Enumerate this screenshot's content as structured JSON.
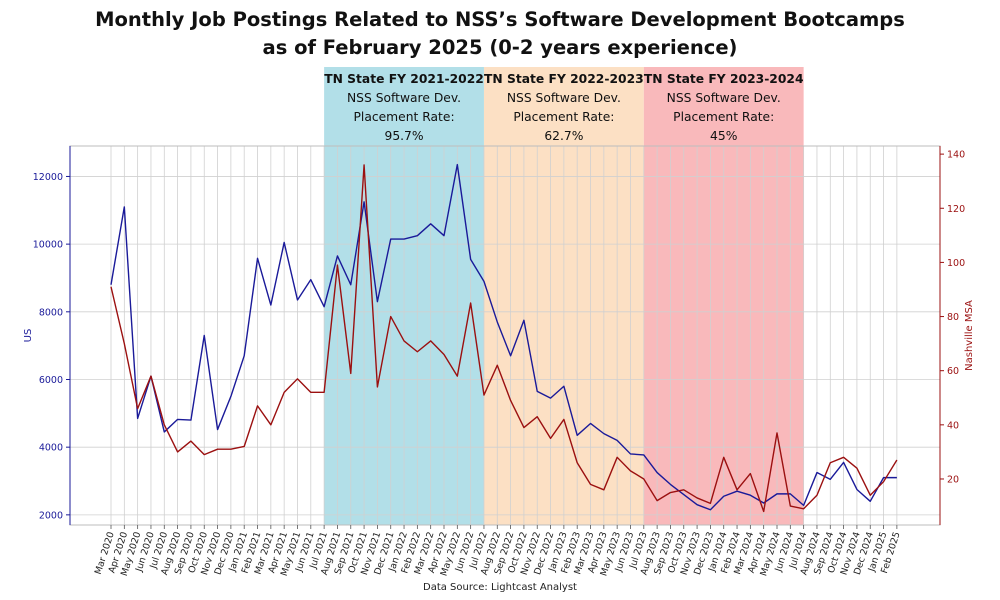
{
  "chart_data": {
    "type": "line",
    "title_lines": [
      "Monthly Job Postings Related to NSS’s Software Development Bootcamps",
      "as of February 2025 (0-2 years experience)"
    ],
    "y_left_label": "US",
    "y_right_label": "Nashville MSA",
    "y_left_ticks": [
      2000,
      4000,
      6000,
      8000,
      10000,
      12000
    ],
    "y_right_ticks": [
      20,
      40,
      60,
      80,
      100,
      120,
      140
    ],
    "y_left_range": [
      1700,
      12900
    ],
    "y_right_range": [
      3,
      143
    ],
    "grid": true,
    "legend": "none",
    "colors": {
      "us": "#1a1a99",
      "nashville": "#9b1010"
    },
    "x": [
      "Mar 2020",
      "Apr 2020",
      "May 2020",
      "Jun 2020",
      "Jul 2020",
      "Aug 2020",
      "Sep 2020",
      "Oct 2020",
      "Nov 2020",
      "Dec 2020",
      "Jan 2021",
      "Feb 2021",
      "Mar 2021",
      "Apr 2021",
      "May 2021",
      "Jun 2021",
      "Jul 2021",
      "Aug 2021",
      "Sep 2021",
      "Oct 2021",
      "Nov 2021",
      "Dec 2021",
      "Jan 2022",
      "Feb 2022",
      "Mar 2022",
      "Apr 2022",
      "May 2022",
      "Jun 2022",
      "Jul 2022",
      "Aug 2022",
      "Sep 2022",
      "Oct 2022",
      "Nov 2022",
      "Dec 2022",
      "Jan 2023",
      "Feb 2023",
      "Mar 2023",
      "Apr 2023",
      "May 2023",
      "Jun 2023",
      "Jul 2023",
      "Aug 2023",
      "Sep 2023",
      "Oct 2023",
      "Nov 2023",
      "Dec 2023",
      "Jan 2024",
      "Feb 2024",
      "Mar 2024",
      "Apr 2024",
      "May 2024",
      "Jun 2024",
      "Jul 2024",
      "Aug 2024",
      "Sep 2024",
      "Oct 2024",
      "Nov 2024",
      "Dec 2024",
      "Jan 2025",
      "Feb 2025"
    ],
    "series": [
      {
        "key": "us",
        "axis": "left",
        "values": [
          8800,
          11100,
          4850,
          6100,
          4450,
          4820,
          4800,
          7300,
          4520,
          5500,
          6700,
          9580,
          8200,
          10050,
          8350,
          8950,
          8150,
          9650,
          8800,
          11250,
          8300,
          10150,
          10150,
          10250,
          10600,
          10250,
          12350,
          9550,
          8900,
          7700,
          6700,
          7750,
          5650,
          5450,
          5800,
          4350,
          4700,
          4400,
          4200,
          3800,
          3770,
          3250,
          2900,
          2600,
          2300,
          2150,
          2550,
          2700,
          2580,
          2350,
          2620,
          2620,
          2280,
          3250,
          3050,
          3550,
          2750,
          2400,
          3100,
          3100
        ]
      },
      {
        "key": "nashville",
        "axis": "right",
        "values": [
          91,
          70,
          46,
          58,
          40,
          30,
          34,
          29,
          31,
          31,
          32,
          47,
          40,
          52,
          57,
          52,
          52,
          99,
          59,
          136,
          54,
          80,
          71,
          67,
          71,
          66,
          58,
          85,
          51,
          62,
          49,
          39,
          43,
          35,
          42,
          26,
          18,
          16,
          28,
          23,
          20,
          12,
          15,
          16,
          13,
          11,
          28,
          16,
          22,
          8,
          37,
          10,
          9,
          14,
          26,
          28,
          24,
          14,
          19,
          27
        ]
      }
    ],
    "bands": [
      {
        "from": "Jul 2021",
        "to": "Jul 2022",
        "color": "#b2dfe8",
        "title": "TN State FY 2021-2022",
        "line1": "NSS Software Dev.",
        "line2": "Placement Rate:",
        "rate": "95.7%"
      },
      {
        "from": "Jul 2022",
        "to": "Jul 2023",
        "color": "#fce0c4",
        "title": "TN State FY 2022-2023",
        "line1": "NSS Software Dev.",
        "line2": "Placement Rate:",
        "rate": "62.7%"
      },
      {
        "from": "Jul 2023",
        "to": "Jul 2024",
        "color": "#f9b9bb",
        "title": "TN State FY 2023-2024",
        "line1": "NSS Software Dev.",
        "line2": "Placement Rate:",
        "rate": "45%"
      }
    ],
    "source": "Data Source: Lightcast Analyst"
  }
}
